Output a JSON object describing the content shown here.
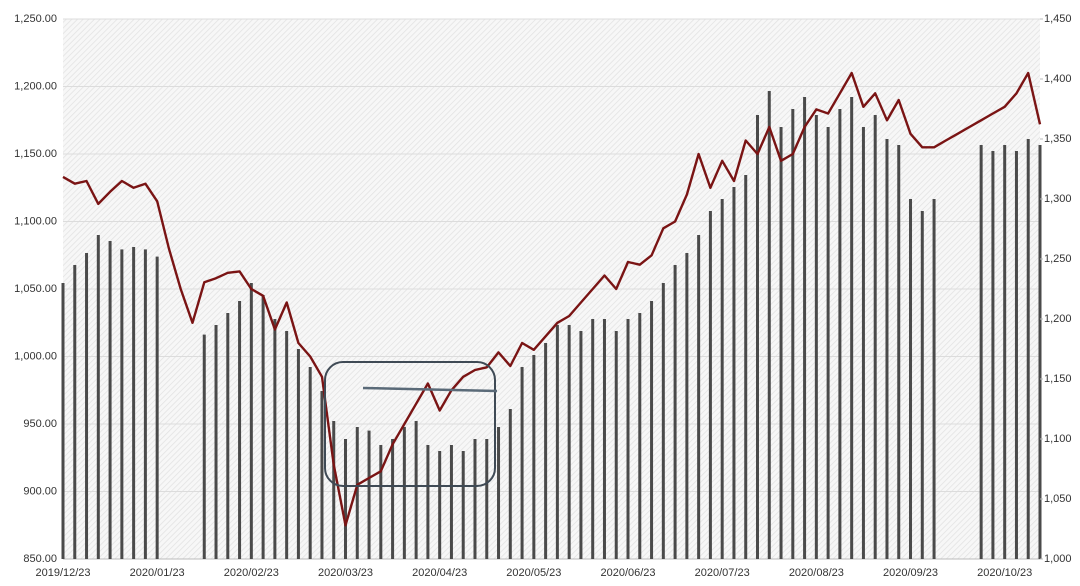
{
  "chart_data": {
    "type": "combo",
    "categories": [
      "2019/12/23",
      null,
      null,
      null,
      null,
      null,
      null,
      null,
      "2020/01/23",
      null,
      null,
      null,
      null,
      null,
      null,
      null,
      "2020/02/23",
      null,
      null,
      null,
      null,
      null,
      null,
      null,
      "2020/03/23",
      null,
      null,
      null,
      null,
      null,
      null,
      null,
      "2020/04/23",
      null,
      null,
      null,
      null,
      null,
      null,
      null,
      "2020/05/23",
      null,
      null,
      null,
      null,
      null,
      null,
      null,
      "2020/06/23",
      null,
      null,
      null,
      null,
      null,
      null,
      null,
      "2020/07/23",
      null,
      null,
      null,
      null,
      null,
      null,
      null,
      "2020/08/23",
      null,
      null,
      null,
      null,
      null,
      null,
      null,
      "2020/09/23",
      null,
      null,
      null,
      null,
      null,
      null,
      null,
      "2020/10/23",
      null,
      null,
      null
    ],
    "series": [
      {
        "type": "bar",
        "axis": "y2",
        "color": "#4a4a4a",
        "values": [
          1230,
          1245,
          1255,
          1270,
          1265,
          1258,
          1260,
          1258,
          1252,
          null,
          null,
          null,
          1187,
          1195,
          1205,
          1215,
          1230,
          1220,
          1200,
          1190,
          1175,
          1160,
          1140,
          1115,
          1100,
          1110,
          1107,
          1095,
          1100,
          1110,
          1115,
          1095,
          1090,
          1095,
          1090,
          1100,
          1100,
          1110,
          1125,
          1160,
          1170,
          1180,
          1195,
          1195,
          1190,
          1200,
          1200,
          1190,
          1200,
          1205,
          1215,
          1230,
          1245,
          1255,
          1270,
          1290,
          1300,
          1310,
          1320,
          1370,
          1390,
          1360,
          1375,
          1385,
          1370,
          1360,
          1375,
          1385,
          1360,
          1370,
          1350,
          1345,
          1300,
          1290,
          1300,
          null,
          null,
          null,
          1345,
          1340,
          1345,
          1340,
          1350,
          1345
        ]
      },
      {
        "type": "line",
        "axis": "y",
        "color": "#7a1414",
        "values": [
          1133,
          1128,
          1130,
          1113,
          1122,
          1130,
          1125,
          1128,
          1115,
          1080,
          1050,
          1025,
          1055,
          1058,
          1062,
          1063,
          1050,
          1045,
          1020,
          1040,
          1010,
          1000,
          985,
          920,
          875,
          905,
          910,
          915,
          935,
          950,
          965,
          980,
          960,
          975,
          985,
          990,
          992,
          1003,
          993,
          1010,
          1005,
          1015,
          1025,
          1030,
          1040,
          1050,
          1060,
          1050,
          1070,
          1068,
          1075,
          1095,
          1100,
          1120,
          1150,
          1125,
          1145,
          1130,
          1160,
          1150,
          1170,
          1145,
          1150,
          1170,
          1183,
          1180,
          1195,
          1210,
          1185,
          1195,
          1175,
          1190,
          1165,
          1155,
          1155,
          1160,
          1165,
          1170,
          1175,
          1180,
          1185,
          1195,
          1210,
          1172
        ]
      }
    ],
    "ylim": [
      850,
      1250
    ],
    "yticks": [
      {
        "value": 850,
        "label": "850.00"
      },
      {
        "value": 900,
        "label": "900.00"
      },
      {
        "value": 950,
        "label": "950.00"
      },
      {
        "value": 1000,
        "label": "1,000.00"
      },
      {
        "value": 1050,
        "label": "1,050.00"
      },
      {
        "value": 1100,
        "label": "1,100.00"
      },
      {
        "value": 1150,
        "label": "1,150.00"
      },
      {
        "value": 1200,
        "label": "1,200.00"
      },
      {
        "value": 1250,
        "label": "1,250.00"
      }
    ],
    "y2lim": [
      1000,
      1450
    ],
    "y2ticks": [
      {
        "value": 1000,
        "label": "1,000"
      },
      {
        "value": 1050,
        "label": "1,050"
      },
      {
        "value": 1100,
        "label": "1,100"
      },
      {
        "value": 1150,
        "label": "1,150"
      },
      {
        "value": 1200,
        "label": "1,200"
      },
      {
        "value": 1250,
        "label": "1,250"
      },
      {
        "value": 1300,
        "label": "1,300"
      },
      {
        "value": 1350,
        "label": "1,350"
      },
      {
        "value": 1400,
        "label": "1,400"
      },
      {
        "value": 1450,
        "label": "1,450"
      }
    ],
    "grid": true
  }
}
